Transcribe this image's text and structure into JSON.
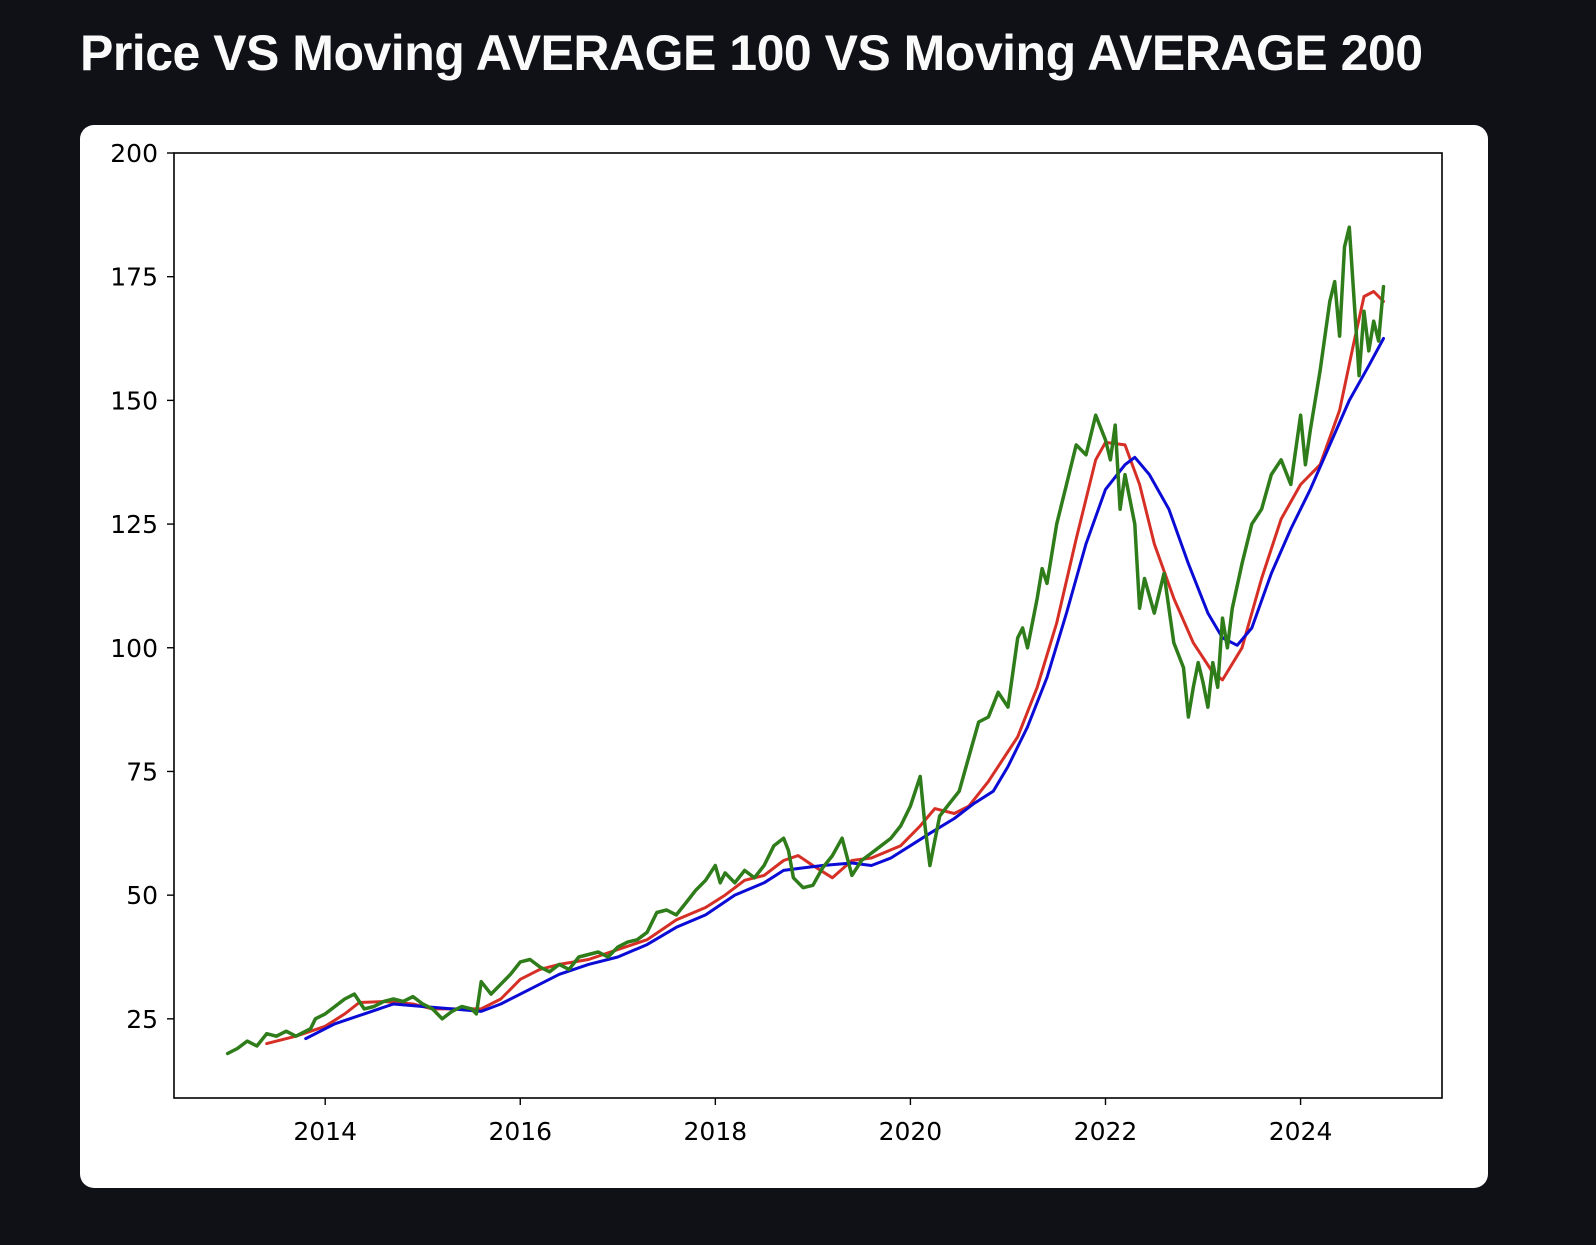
{
  "page": {
    "title": "Price VS Moving AVERAGE 100 VS Moving AVERAGE 200"
  },
  "chart_data": {
    "type": "line",
    "title": "",
    "xlabel": "",
    "ylabel": "",
    "xlim": [
      2012.45,
      2025.45
    ],
    "ylim": [
      9,
      200
    ],
    "x_ticks": [
      2014,
      2016,
      2018,
      2020,
      2022,
      2024
    ],
    "y_ticks": [
      25,
      50,
      75,
      100,
      125,
      150,
      175,
      200
    ],
    "grid": false,
    "legend": "none",
    "series": [
      {
        "color": "#d62f26",
        "stroke_width": 3,
        "points": [
          [
            2013.4,
            20
          ],
          [
            2013.7,
            21.5
          ],
          [
            2014.0,
            23.5
          ],
          [
            2014.2,
            26
          ],
          [
            2014.35,
            28.3
          ],
          [
            2014.6,
            28.5
          ],
          [
            2014.9,
            28
          ],
          [
            2015.1,
            27
          ],
          [
            2015.4,
            27
          ],
          [
            2015.6,
            27
          ],
          [
            2015.8,
            29
          ],
          [
            2016.0,
            33
          ],
          [
            2016.2,
            35
          ],
          [
            2016.4,
            36
          ],
          [
            2016.7,
            37
          ],
          [
            2017.0,
            39
          ],
          [
            2017.3,
            41
          ],
          [
            2017.6,
            45
          ],
          [
            2017.9,
            47.5
          ],
          [
            2018.1,
            50
          ],
          [
            2018.3,
            53
          ],
          [
            2018.5,
            54
          ],
          [
            2018.7,
            57
          ],
          [
            2018.85,
            58
          ],
          [
            2019.0,
            56
          ],
          [
            2019.2,
            53.5
          ],
          [
            2019.4,
            57
          ],
          [
            2019.6,
            57.5
          ],
          [
            2019.9,
            60
          ],
          [
            2020.1,
            64
          ],
          [
            2020.25,
            67.5
          ],
          [
            2020.45,
            66.5
          ],
          [
            2020.6,
            68
          ],
          [
            2020.8,
            73
          ],
          [
            2021.1,
            82
          ],
          [
            2021.3,
            92
          ],
          [
            2021.5,
            105
          ],
          [
            2021.7,
            122
          ],
          [
            2021.9,
            138
          ],
          [
            2022.0,
            141.5
          ],
          [
            2022.2,
            141
          ],
          [
            2022.35,
            133
          ],
          [
            2022.5,
            121
          ],
          [
            2022.7,
            110
          ],
          [
            2022.9,
            101
          ],
          [
            2023.1,
            95
          ],
          [
            2023.2,
            93.5
          ],
          [
            2023.4,
            100
          ],
          [
            2023.6,
            114
          ],
          [
            2023.8,
            126
          ],
          [
            2024.0,
            133
          ],
          [
            2024.2,
            137
          ],
          [
            2024.4,
            148
          ],
          [
            2024.55,
            162
          ],
          [
            2024.65,
            171
          ],
          [
            2024.75,
            172
          ],
          [
            2024.85,
            170
          ]
        ]
      },
      {
        "color": "#0b0bd6",
        "stroke_width": 3,
        "points": [
          [
            2013.8,
            21
          ],
          [
            2014.1,
            24
          ],
          [
            2014.4,
            26
          ],
          [
            2014.7,
            28
          ],
          [
            2015.0,
            27.5
          ],
          [
            2015.3,
            27
          ],
          [
            2015.6,
            26.5
          ],
          [
            2015.8,
            28
          ],
          [
            2016.1,
            31
          ],
          [
            2016.4,
            34
          ],
          [
            2016.7,
            36
          ],
          [
            2017.0,
            37.5
          ],
          [
            2017.3,
            40
          ],
          [
            2017.6,
            43.5
          ],
          [
            2017.9,
            46
          ],
          [
            2018.2,
            50
          ],
          [
            2018.5,
            52.5
          ],
          [
            2018.7,
            55
          ],
          [
            2018.9,
            55.5
          ],
          [
            2019.1,
            56
          ],
          [
            2019.4,
            56.5
          ],
          [
            2019.6,
            56
          ],
          [
            2019.8,
            57.5
          ],
          [
            2020.0,
            60
          ],
          [
            2020.2,
            62.5
          ],
          [
            2020.45,
            65.5
          ],
          [
            2020.65,
            68.5
          ],
          [
            2020.85,
            71
          ],
          [
            2021.0,
            76
          ],
          [
            2021.2,
            84
          ],
          [
            2021.4,
            94
          ],
          [
            2021.6,
            107
          ],
          [
            2021.8,
            121
          ],
          [
            2022.0,
            132
          ],
          [
            2022.2,
            137
          ],
          [
            2022.3,
            138.5
          ],
          [
            2022.45,
            135
          ],
          [
            2022.65,
            128
          ],
          [
            2022.85,
            117
          ],
          [
            2023.05,
            107
          ],
          [
            2023.2,
            102
          ],
          [
            2023.35,
            100.5
          ],
          [
            2023.5,
            104
          ],
          [
            2023.7,
            115
          ],
          [
            2023.9,
            124
          ],
          [
            2024.1,
            132
          ],
          [
            2024.3,
            141
          ],
          [
            2024.5,
            150
          ],
          [
            2024.7,
            157
          ],
          [
            2024.85,
            162.5
          ]
        ]
      },
      {
        "color": "#2f7c1a",
        "stroke_width": 3.5,
        "points": [
          [
            2013.0,
            18
          ],
          [
            2013.1,
            19
          ],
          [
            2013.2,
            20.5
          ],
          [
            2013.3,
            19.5
          ],
          [
            2013.4,
            22
          ],
          [
            2013.5,
            21.5
          ],
          [
            2013.6,
            22.5
          ],
          [
            2013.7,
            21.5
          ],
          [
            2013.85,
            23
          ],
          [
            2013.9,
            25
          ],
          [
            2014.0,
            26
          ],
          [
            2014.1,
            27.5
          ],
          [
            2014.2,
            29
          ],
          [
            2014.3,
            30
          ],
          [
            2014.4,
            27
          ],
          [
            2014.5,
            27.5
          ],
          [
            2014.6,
            28.5
          ],
          [
            2014.7,
            29
          ],
          [
            2014.8,
            28.5
          ],
          [
            2014.9,
            29.5
          ],
          [
            2015.0,
            28
          ],
          [
            2015.1,
            27
          ],
          [
            2015.2,
            25
          ],
          [
            2015.3,
            26.5
          ],
          [
            2015.4,
            27.5
          ],
          [
            2015.5,
            27
          ],
          [
            2015.55,
            26
          ],
          [
            2015.6,
            32.5
          ],
          [
            2015.7,
            30
          ],
          [
            2015.8,
            32
          ],
          [
            2015.9,
            34
          ],
          [
            2016.0,
            36.5
          ],
          [
            2016.1,
            37
          ],
          [
            2016.2,
            35.5
          ],
          [
            2016.3,
            34.5
          ],
          [
            2016.4,
            36
          ],
          [
            2016.5,
            35
          ],
          [
            2016.6,
            37.5
          ],
          [
            2016.7,
            38
          ],
          [
            2016.8,
            38.5
          ],
          [
            2016.9,
            37.5
          ],
          [
            2017.0,
            39.5
          ],
          [
            2017.1,
            40.5
          ],
          [
            2017.2,
            41
          ],
          [
            2017.3,
            42.5
          ],
          [
            2017.4,
            46.5
          ],
          [
            2017.5,
            47
          ],
          [
            2017.6,
            46
          ],
          [
            2017.7,
            48.5
          ],
          [
            2017.8,
            51
          ],
          [
            2017.9,
            53
          ],
          [
            2018.0,
            56
          ],
          [
            2018.05,
            52.5
          ],
          [
            2018.1,
            54.5
          ],
          [
            2018.2,
            52.5
          ],
          [
            2018.3,
            55
          ],
          [
            2018.4,
            53.5
          ],
          [
            2018.5,
            56
          ],
          [
            2018.6,
            60
          ],
          [
            2018.7,
            61.5
          ],
          [
            2018.75,
            59
          ],
          [
            2018.8,
            53.5
          ],
          [
            2018.9,
            51.5
          ],
          [
            2019.0,
            52
          ],
          [
            2019.1,
            55.5
          ],
          [
            2019.2,
            58
          ],
          [
            2019.3,
            61.5
          ],
          [
            2019.4,
            54
          ],
          [
            2019.5,
            57
          ],
          [
            2019.6,
            58.5
          ],
          [
            2019.7,
            60
          ],
          [
            2019.8,
            61.5
          ],
          [
            2019.9,
            64
          ],
          [
            2020.0,
            68
          ],
          [
            2020.1,
            74
          ],
          [
            2020.15,
            64
          ],
          [
            2020.2,
            56
          ],
          [
            2020.25,
            61
          ],
          [
            2020.3,
            66
          ],
          [
            2020.4,
            68.5
          ],
          [
            2020.5,
            71
          ],
          [
            2020.6,
            78
          ],
          [
            2020.7,
            85
          ],
          [
            2020.8,
            86
          ],
          [
            2020.9,
            91
          ],
          [
            2021.0,
            88
          ],
          [
            2021.1,
            102
          ],
          [
            2021.15,
            104
          ],
          [
            2021.2,
            100
          ],
          [
            2021.3,
            110
          ],
          [
            2021.35,
            116
          ],
          [
            2021.4,
            113
          ],
          [
            2021.5,
            125
          ],
          [
            2021.6,
            133
          ],
          [
            2021.7,
            141
          ],
          [
            2021.8,
            139
          ],
          [
            2021.9,
            147
          ],
          [
            2022.0,
            142
          ],
          [
            2022.05,
            138
          ],
          [
            2022.1,
            145
          ],
          [
            2022.15,
            128
          ],
          [
            2022.2,
            135
          ],
          [
            2022.3,
            125
          ],
          [
            2022.35,
            108
          ],
          [
            2022.4,
            114
          ],
          [
            2022.5,
            107
          ],
          [
            2022.6,
            115
          ],
          [
            2022.7,
            101
          ],
          [
            2022.8,
            96
          ],
          [
            2022.85,
            86
          ],
          [
            2022.9,
            92
          ],
          [
            2022.95,
            97
          ],
          [
            2023.0,
            93
          ],
          [
            2023.05,
            88
          ],
          [
            2023.1,
            97
          ],
          [
            2023.15,
            92
          ],
          [
            2023.2,
            106
          ],
          [
            2023.25,
            100
          ],
          [
            2023.3,
            108
          ],
          [
            2023.4,
            117
          ],
          [
            2023.5,
            125
          ],
          [
            2023.6,
            128
          ],
          [
            2023.7,
            135
          ],
          [
            2023.8,
            138
          ],
          [
            2023.9,
            133
          ],
          [
            2024.0,
            147
          ],
          [
            2024.05,
            137
          ],
          [
            2024.1,
            144
          ],
          [
            2024.2,
            156
          ],
          [
            2024.3,
            170
          ],
          [
            2024.35,
            174
          ],
          [
            2024.4,
            163
          ],
          [
            2024.45,
            181
          ],
          [
            2024.5,
            185
          ],
          [
            2024.55,
            170
          ],
          [
            2024.6,
            155
          ],
          [
            2024.65,
            168
          ],
          [
            2024.7,
            160
          ],
          [
            2024.75,
            166
          ],
          [
            2024.8,
            162
          ],
          [
            2024.85,
            173
          ]
        ]
      }
    ]
  }
}
